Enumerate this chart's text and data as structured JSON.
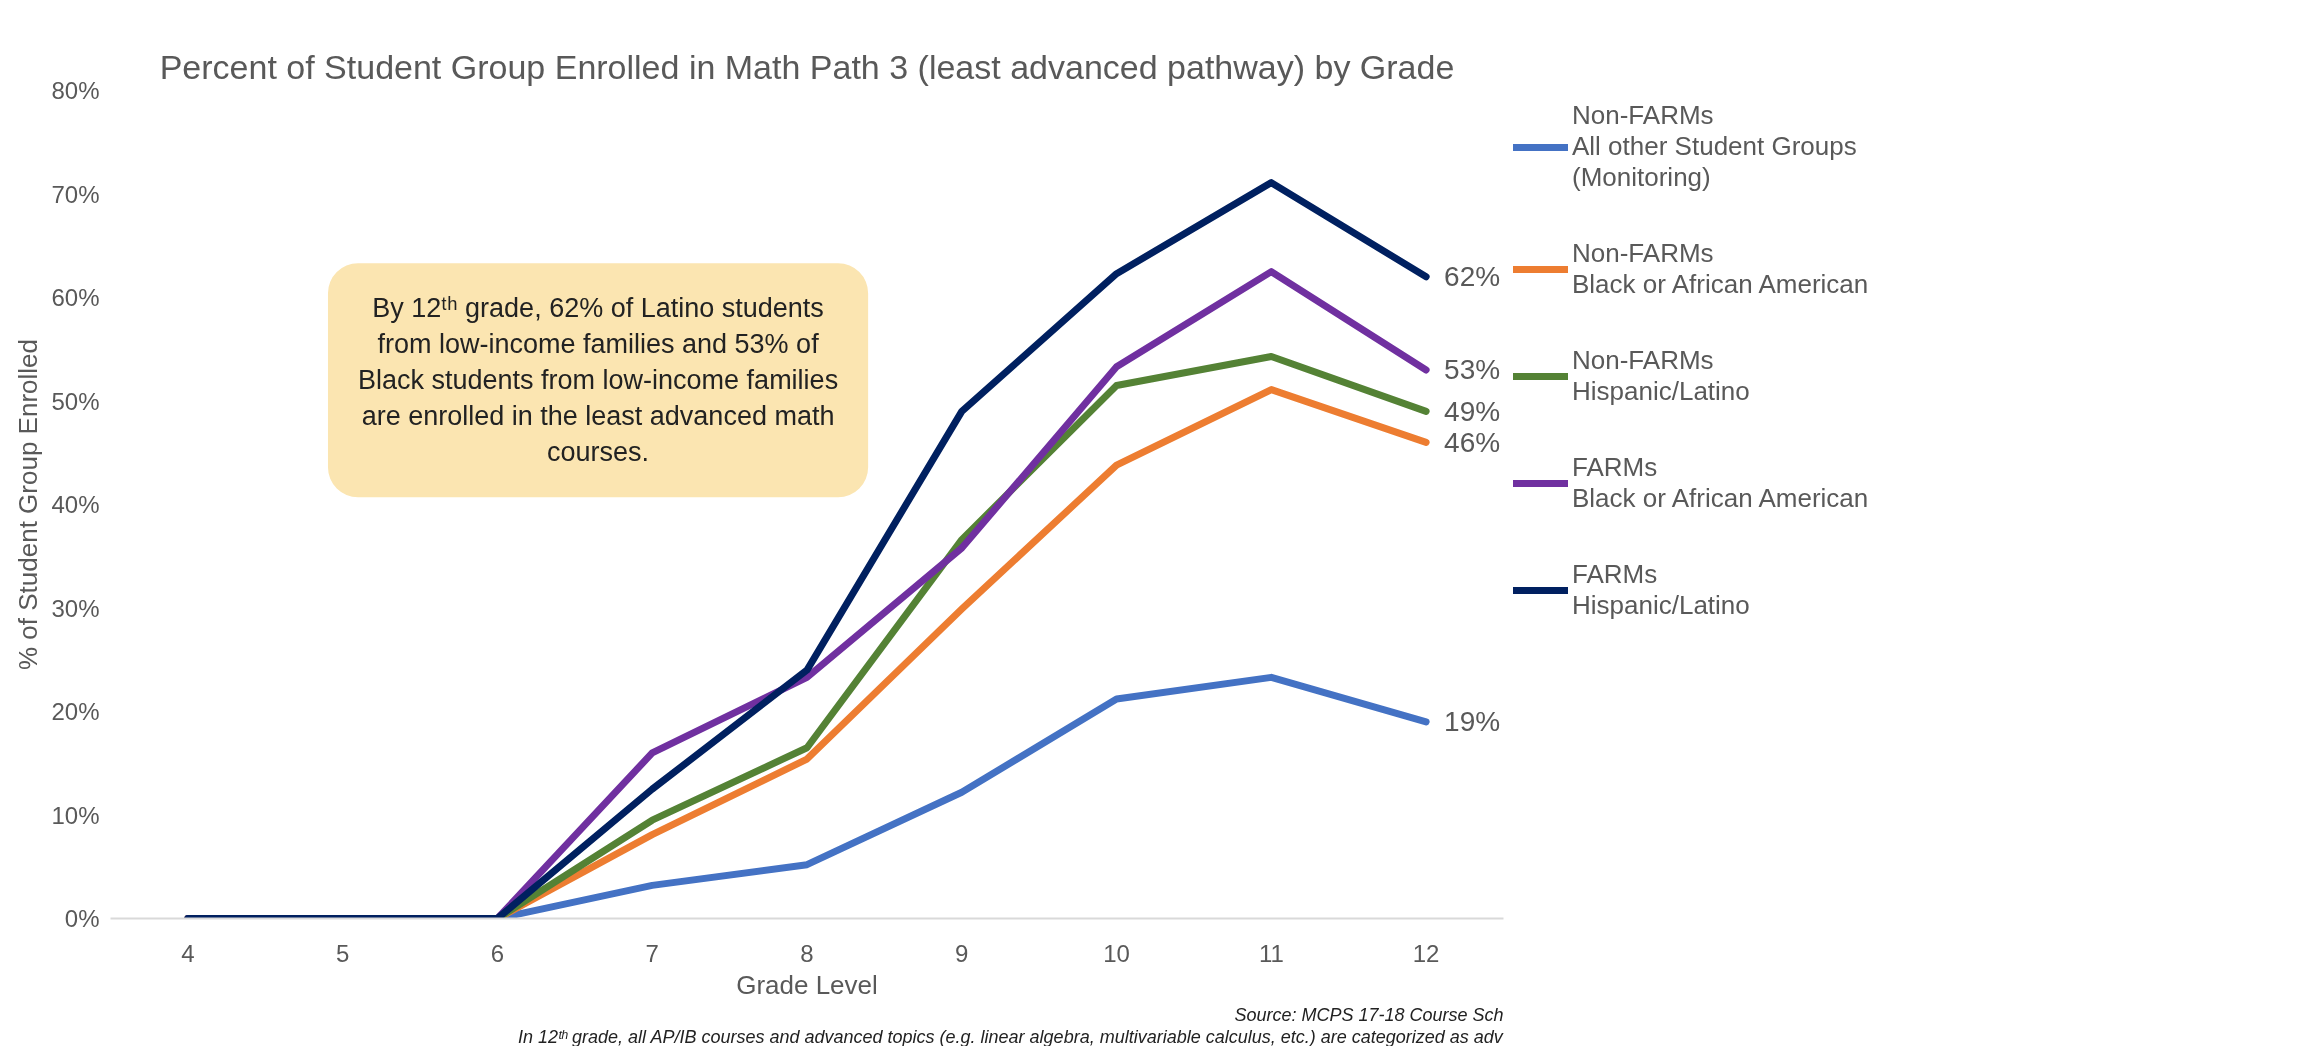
{
  "chart_data": {
    "type": "line",
    "title": "Percent of Student Group Enrolled in Math Path 3 (least advanced pathway) by Grade",
    "xlabel": "Grade Level",
    "ylabel": "% of Student Group Enrolled",
    "categories": [
      "4",
      "5",
      "6",
      "7",
      "8",
      "9",
      "10",
      "11",
      "12"
    ],
    "series": [
      {
        "name": "Non-FARMs All other Student Groups (Monitoring)",
        "color": "#4472c4",
        "values": [
          0,
          0,
          0,
          3.2,
          5.2,
          12.2,
          21.2,
          23.3,
          19
        ],
        "value_labels": [
          null,
          null,
          null,
          null,
          null,
          null,
          null,
          null,
          "19%"
        ]
      },
      {
        "name": "Non-FARMs Black or African American",
        "color": "#ed7d31",
        "values": [
          0,
          0,
          0,
          8.1,
          15.4,
          29.9,
          43.8,
          51.1,
          46
        ],
        "value_labels": [
          null,
          null,
          null,
          null,
          null,
          null,
          null,
          null,
          "46%"
        ]
      },
      {
        "name": "Non-FARMs Hispanic/Latino",
        "color": "#548235",
        "values": [
          0,
          0,
          0,
          9.5,
          16.5,
          36.6,
          51.5,
          54.3,
          49
        ],
        "value_labels": [
          null,
          null,
          null,
          null,
          null,
          null,
          null,
          null,
          "49%"
        ]
      },
      {
        "name": "FARMs Black or African American",
        "color": "#7030a0",
        "values": [
          0,
          0,
          0,
          16.0,
          23.3,
          35.8,
          53.3,
          62.5,
          53
        ],
        "value_labels": [
          null,
          null,
          null,
          null,
          null,
          null,
          null,
          null,
          "53%"
        ]
      },
      {
        "name": "FARMs Hispanic/Latino",
        "color": "#002060",
        "values": [
          0,
          0,
          0,
          12.5,
          24.0,
          49.0,
          62.3,
          71.1,
          62
        ],
        "value_labels": [
          null,
          null,
          null,
          null,
          null,
          null,
          null,
          null,
          "62%"
        ]
      }
    ],
    "ylim": [
      0,
      80
    ],
    "yticks": [
      {
        "value": 0,
        "label": "0%"
      },
      {
        "value": 10,
        "label": "10%"
      },
      {
        "value": 20,
        "label": "20%"
      },
      {
        "value": 30,
        "label": "30%"
      },
      {
        "value": 40,
        "label": "40%"
      },
      {
        "value": 50,
        "label": "50%"
      },
      {
        "value": 60,
        "label": "60%"
      },
      {
        "value": 70,
        "label": "70%"
      },
      {
        "value": 80,
        "label": "80%"
      }
    ],
    "grid": false,
    "legend": "right",
    "marker": "none",
    "line_style": "solid",
    "annotations": [
      "By 12ᵗʰ grade, 62% of Latino students from low-income families and 53% of Black students from low-income families are enrolled in the least advanced math courses.",
      "Source: MCPS 17-18 Course Sch",
      "In 12ᵗʰ grade, all AP/IB courses and advanced topics (e.g. linear algebra, multivariable calculus, etc.) are categorized as adv"
    ]
  }
}
